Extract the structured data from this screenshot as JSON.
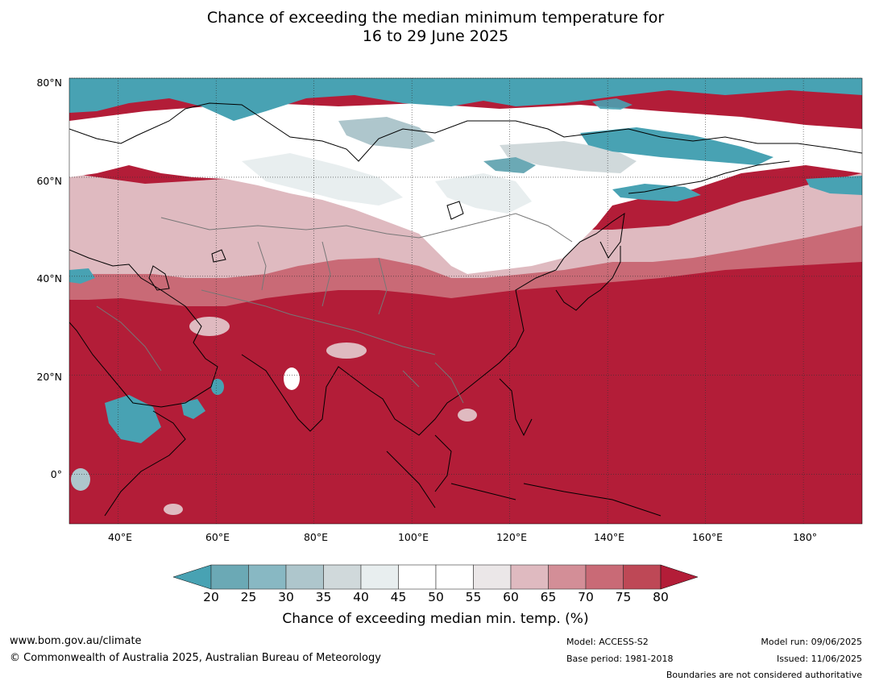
{
  "title": {
    "line1": "Chance of exceeding the median minimum temperature for",
    "line2": "16 to 29 June 2025"
  },
  "map": {
    "lat_labels": [
      "80°N",
      "60°N",
      "40°N",
      "20°N",
      "0°"
    ],
    "lon_labels": [
      "40°E",
      "60°E",
      "80°E",
      "100°E",
      "120°E",
      "140°E",
      "160°E",
      "180°"
    ],
    "lat_range": [
      -10,
      80
    ],
    "lon_range": [
      30,
      192
    ]
  },
  "colorbar": {
    "ticks": [
      "20",
      "25",
      "30",
      "35",
      "40",
      "45",
      "50",
      "55",
      "60",
      "65",
      "70",
      "75",
      "80"
    ],
    "colors": [
      "#6ba9b5",
      "#88b8c3",
      "#aec6cc",
      "#d0d9db",
      "#e8eeef",
      "#ffffff",
      "#ffffff",
      "#ebe7e8",
      "#dfbac0",
      "#d38e97",
      "#c96a76",
      "#be4856"
    ],
    "low_color": "#48a2b3",
    "high_color": "#b31d38",
    "label": "Chance of exceeding median min. temp. (%)"
  },
  "footer": {
    "url": "www.bom.gov.au/climate",
    "copyright": "© Commonwealth of Australia 2025, Australian Bureau of Meteorology",
    "model": "Model: ACCESS-S2",
    "base_period": "Base period: 1981-2018",
    "model_run": "Model run: 09/06/2025",
    "issued": "Issued: 11/06/2025",
    "disclaimer": "Boundaries are not considered authoritative"
  }
}
